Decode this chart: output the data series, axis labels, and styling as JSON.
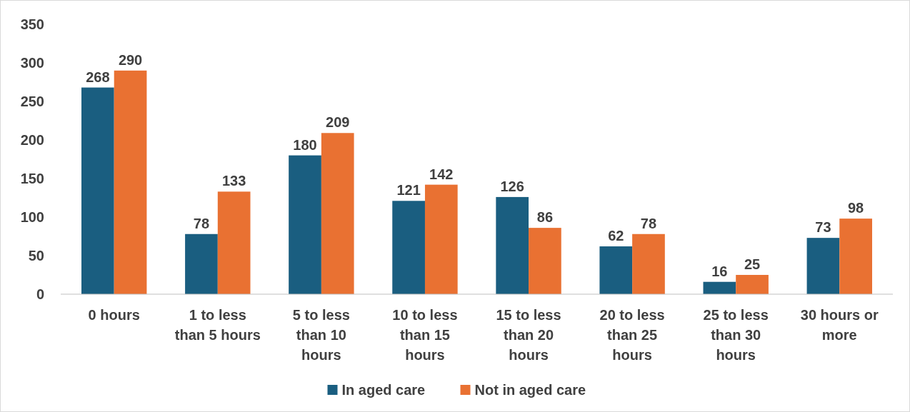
{
  "chart_data": {
    "type": "bar",
    "categories": [
      "0 hours",
      "1 to less than 5 hours",
      "5 to less than 10 hours",
      "10 to less than 15 hours",
      "15 to less than 20 hours",
      "20 to less than 25 hours",
      "25 to less than 30 hours",
      "30 hours or more"
    ],
    "series": [
      {
        "name": "In aged care",
        "color": "#1a5e80",
        "values": [
          268,
          78,
          180,
          121,
          126,
          62,
          16,
          73
        ]
      },
      {
        "name": "Not in aged care",
        "color": "#e97132",
        "values": [
          290,
          133,
          209,
          142,
          86,
          78,
          25,
          98
        ]
      }
    ],
    "ylim": [
      0,
      350
    ],
    "yticks": [
      0,
      50,
      100,
      150,
      200,
      250,
      300,
      350
    ],
    "data_labels": true,
    "legend": "bottom",
    "grid": false
  }
}
